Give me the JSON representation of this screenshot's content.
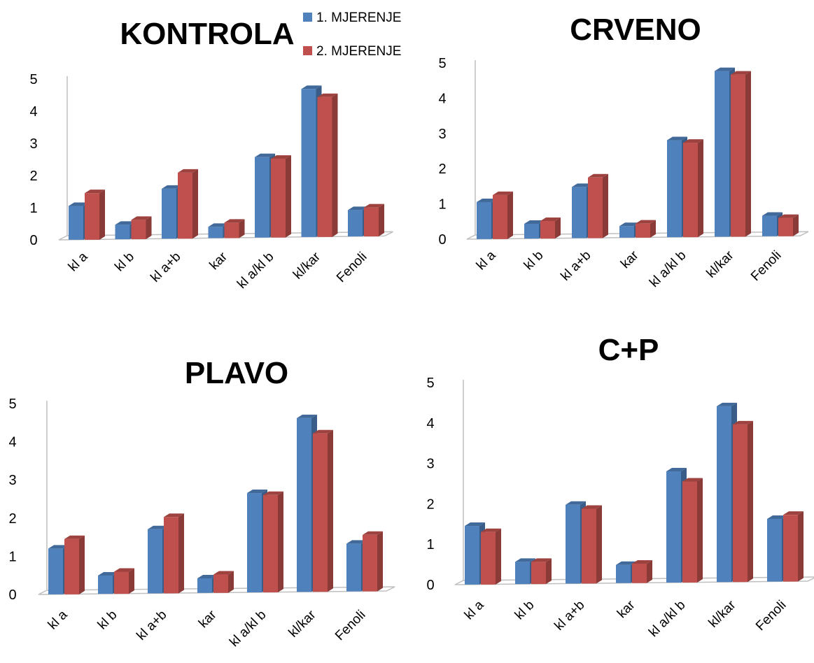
{
  "colors": {
    "series1": "#4f81bd",
    "series2": "#c0504d"
  },
  "legend": [
    {
      "name": "1. MJERENJE"
    },
    {
      "name": "2. MJERENJE"
    }
  ],
  "chart_data": [
    {
      "type": "bar",
      "title": "KONTROLA",
      "categories": [
        "kl a",
        "kl b",
        "kl a+b",
        "kar",
        "kl a/kl b",
        "kl/kar",
        "Fenoli"
      ],
      "series": [
        {
          "name": "1. MJERENJE",
          "values": [
            1.05,
            0.45,
            1.55,
            0.35,
            2.5,
            4.6,
            0.82
          ]
        },
        {
          "name": "2. MJERENJE",
          "values": [
            1.45,
            0.6,
            2.05,
            0.48,
            2.45,
            4.35,
            0.9
          ]
        }
      ],
      "ylim": [
        0,
        5
      ],
      "yticks": [
        "0",
        "1",
        "2",
        "3",
        "4",
        "5"
      ]
    },
    {
      "type": "bar",
      "title": "CRVENO",
      "categories": [
        "kl a",
        "kl b",
        "kl a+b",
        "kar",
        "kl a/kl b",
        "kl/kar",
        "Fenoli"
      ],
      "series": [
        {
          "name": "1. MJERENJE",
          "values": [
            1.05,
            0.42,
            1.45,
            0.33,
            2.75,
            4.7,
            0.58
          ]
        },
        {
          "name": "2. MJERENJE",
          "values": [
            1.25,
            0.5,
            1.72,
            0.4,
            2.68,
            4.6,
            0.52
          ]
        }
      ],
      "ylim": [
        0,
        5
      ],
      "yticks": [
        "0",
        "1",
        "2",
        "3",
        "4",
        "5"
      ]
    },
    {
      "type": "bar",
      "title": "PLAVO",
      "categories": [
        "kl a",
        "kl b",
        "kl a+b",
        "kar",
        "kl a/kl b",
        "kl/kar",
        "Fenoli"
      ],
      "series": [
        {
          "name": "1. MJERENJE",
          "values": [
            1.2,
            0.48,
            1.68,
            0.38,
            2.6,
            4.55,
            1.25
          ]
        },
        {
          "name": "2. MJERENJE",
          "values": [
            1.45,
            0.58,
            2.0,
            0.48,
            2.55,
            4.15,
            1.48
          ]
        }
      ],
      "ylim": [
        0,
        5
      ],
      "yticks": [
        "0",
        "1",
        "2",
        "3",
        "4",
        "5"
      ]
    },
    {
      "type": "bar",
      "title": "C+P",
      "categories": [
        "kl a",
        "kl b",
        "kl a+b",
        "kar",
        "kl a/kl b",
        "kl/kar",
        "Fenoli"
      ],
      "series": [
        {
          "name": "1. MJERENJE",
          "values": [
            1.45,
            0.55,
            1.95,
            0.45,
            2.75,
            4.35,
            1.55
          ]
        },
        {
          "name": "2. MJERENJE",
          "values": [
            1.3,
            0.55,
            1.85,
            0.48,
            2.5,
            3.9,
            1.65
          ]
        }
      ],
      "ylim": [
        0,
        5
      ],
      "yticks": [
        "0",
        "1",
        "2",
        "3",
        "4",
        "5"
      ]
    }
  ]
}
